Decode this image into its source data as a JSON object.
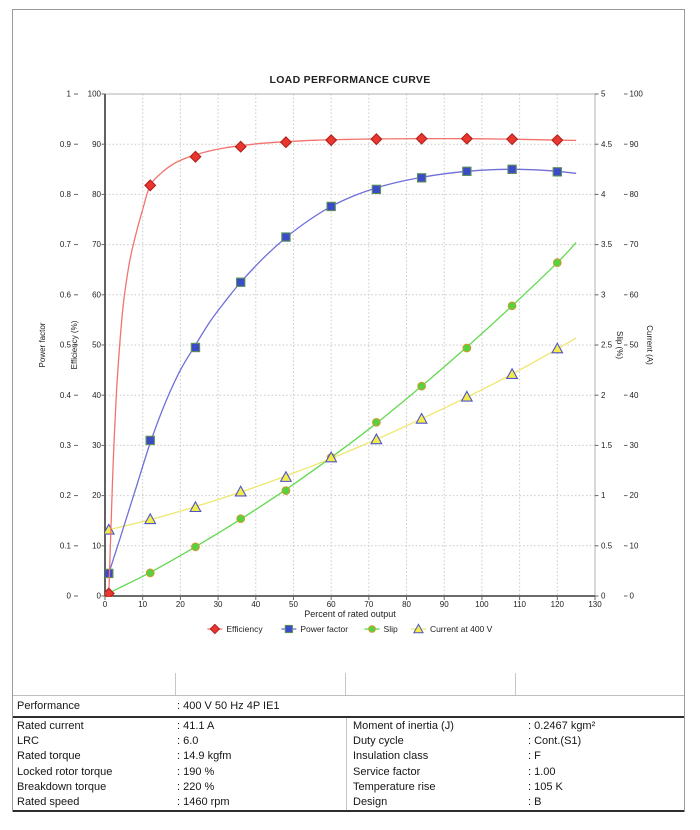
{
  "chart_data": {
    "type": "line",
    "title": "LOAD PERFORMANCE CURVE",
    "x_axis": {
      "label": "Percent of rated output",
      "min": 0,
      "max": 130,
      "tick_step": 10,
      "ticks": [
        "0",
        "10",
        "20",
        "30",
        "40",
        "50",
        "60",
        "70",
        "80",
        "90",
        "100",
        "110",
        "120",
        "130"
      ]
    },
    "axes": [
      {
        "id": "power_factor",
        "label": "Power factor",
        "side": "left",
        "min": 0,
        "max": 1,
        "tick_step": 0.1,
        "ticks": [
          "0",
          "0.1",
          "0.2",
          "0.3",
          "0.4",
          "0.5",
          "0.6",
          "0.7",
          "0.8",
          "0.9",
          "1"
        ]
      },
      {
        "id": "efficiency",
        "label": "Efficiency (%)",
        "side": "left",
        "min": 0,
        "max": 100,
        "tick_step": 10,
        "ticks": [
          "0",
          "10",
          "20",
          "30",
          "40",
          "50",
          "60",
          "70",
          "80",
          "90",
          "100"
        ]
      },
      {
        "id": "slip",
        "label": "Slip (%)",
        "side": "right",
        "min": 0,
        "max": 5,
        "tick_step": 0.5,
        "ticks": [
          "0",
          "0.5",
          "1",
          "1.5",
          "2",
          "2.5",
          "3",
          "3.5",
          "4",
          "4.5",
          "5"
        ]
      },
      {
        "id": "current",
        "label": "Current (A)",
        "side": "right",
        "min": 0,
        "max": 100,
        "tick_step": 10,
        "ticks": [
          "0",
          "10",
          "20",
          "30",
          "40",
          "50",
          "60",
          "70",
          "80",
          "90",
          "100"
        ]
      }
    ],
    "x_points": [
      1,
      12,
      24,
      36,
      48,
      60,
      72,
      84,
      96,
      108,
      120
    ],
    "grid": "dotted",
    "legend_position": "bottom-center",
    "series": [
      {
        "name": "Efficiency",
        "axis": "efficiency",
        "marker": "diamond",
        "z": 4,
        "marker_color": "#e8372f",
        "marker_edge": "#b3201b",
        "line_color": "#f2736d",
        "values": [
          0.5,
          81.8,
          87.5,
          89.5,
          90.4,
          90.8,
          91.0,
          91.1,
          91.1,
          91.0,
          90.8
        ],
        "curve": [
          [
            1,
            0
          ],
          [
            1.6,
            14
          ],
          [
            2.2,
            27
          ],
          [
            3,
            40
          ],
          [
            4,
            51
          ],
          [
            5,
            59
          ],
          [
            6.5,
            66.5
          ],
          [
            8,
            71.5
          ],
          [
            10,
            77
          ],
          [
            12,
            81.8
          ],
          [
            15,
            84.3
          ],
          [
            18,
            86
          ],
          [
            21,
            87.1
          ],
          [
            24,
            87.9
          ],
          [
            28,
            88.7
          ],
          [
            32,
            89.3
          ],
          [
            36,
            89.7
          ],
          [
            42,
            90.2
          ],
          [
            48,
            90.5
          ],
          [
            56,
            90.8
          ],
          [
            64,
            90.95
          ],
          [
            72,
            91.05
          ],
          [
            84,
            91.1
          ],
          [
            96,
            91.1
          ],
          [
            108,
            91.0
          ],
          [
            118,
            90.85
          ],
          [
            125,
            90.75
          ]
        ]
      },
      {
        "name": "Power factor",
        "axis": "power_factor",
        "marker": "square",
        "z": 3,
        "marker_color": "#3b4bc8",
        "marker_edge": "#5d8f58",
        "line_color": "#6f6fd8",
        "values": [
          0.045,
          0.31,
          0.495,
          0.625,
          0.715,
          0.776,
          0.81,
          0.833,
          0.846,
          0.85,
          0.845
        ],
        "curve": [
          [
            1,
            0.045
          ],
          [
            4,
            0.115
          ],
          [
            8,
            0.21
          ],
          [
            12,
            0.305
          ],
          [
            16,
            0.385
          ],
          [
            20,
            0.45
          ],
          [
            24,
            0.5
          ],
          [
            28,
            0.548
          ],
          [
            32,
            0.588
          ],
          [
            36,
            0.625
          ],
          [
            42,
            0.673
          ],
          [
            48,
            0.714
          ],
          [
            54,
            0.748
          ],
          [
            60,
            0.776
          ],
          [
            66,
            0.797
          ],
          [
            72,
            0.813
          ],
          [
            78,
            0.825
          ],
          [
            84,
            0.834
          ],
          [
            90,
            0.841
          ],
          [
            96,
            0.846
          ],
          [
            102,
            0.849
          ],
          [
            108,
            0.85
          ],
          [
            114,
            0.849
          ],
          [
            120,
            0.846
          ],
          [
            125,
            0.842
          ]
        ]
      },
      {
        "name": "Slip",
        "axis": "slip",
        "marker": "circle",
        "z": 1,
        "marker_color": "#53d340",
        "marker_edge": "#c99c2c",
        "line_color": "#62da4e",
        "values": [
          0.02,
          0.23,
          0.49,
          0.77,
          1.05,
          1.38,
          1.73,
          2.09,
          2.47,
          2.89,
          3.32
        ],
        "curve": [
          [
            1,
            0.03
          ],
          [
            12,
            0.235
          ],
          [
            24,
            0.49
          ],
          [
            36,
            0.765
          ],
          [
            48,
            1.06
          ],
          [
            60,
            1.38
          ],
          [
            72,
            1.72
          ],
          [
            84,
            2.09
          ],
          [
            96,
            2.48
          ],
          [
            108,
            2.89
          ],
          [
            120,
            3.32
          ],
          [
            125,
            3.52
          ]
        ]
      },
      {
        "name": "Current at 400 V",
        "axis": "current",
        "marker": "triangle",
        "z": 2,
        "marker_color": "#f5ec4b",
        "marker_edge": "#4d55c9",
        "line_color": "#efe76e",
        "values": [
          13.2,
          15.3,
          17.7,
          20.8,
          23.7,
          27.6,
          31.2,
          35.3,
          39.7,
          44.2,
          49.3
        ],
        "curve": [
          [
            1,
            13.2
          ],
          [
            12,
            15.2
          ],
          [
            24,
            17.8
          ],
          [
            36,
            20.7
          ],
          [
            48,
            23.9
          ],
          [
            60,
            27.4
          ],
          [
            72,
            31.2
          ],
          [
            84,
            35.3
          ],
          [
            96,
            39.6
          ],
          [
            108,
            44.2
          ],
          [
            120,
            49.2
          ],
          [
            125,
            51.4
          ]
        ]
      }
    ]
  },
  "table": {
    "performance_label": "Performance",
    "performance_value": ": 400 V 50 Hz 4P IE1",
    "left_rows": [
      {
        "label": "Rated current",
        "value": ": 41.1 A"
      },
      {
        "label": "LRC",
        "value": ": 6.0"
      },
      {
        "label": "Rated torque",
        "value": ": 14.9 kgfm"
      },
      {
        "label": "Locked rotor torque",
        "value": ": 190 %"
      },
      {
        "label": "Breakdown torque",
        "value": ": 220 %"
      },
      {
        "label": "Rated speed",
        "value": ": 1460 rpm"
      }
    ],
    "right_rows": [
      {
        "label": "Moment of inertia (J)",
        "value": ": 0.2467 kgm²"
      },
      {
        "label": "Duty cycle",
        "value": ": Cont.(S1)"
      },
      {
        "label": "Insulation class",
        "value": ": F"
      },
      {
        "label": "Service factor",
        "value": ": 1.00"
      },
      {
        "label": "Temperature rise",
        "value": ": 105 K"
      },
      {
        "label": "Design",
        "value": ": B"
      }
    ]
  }
}
